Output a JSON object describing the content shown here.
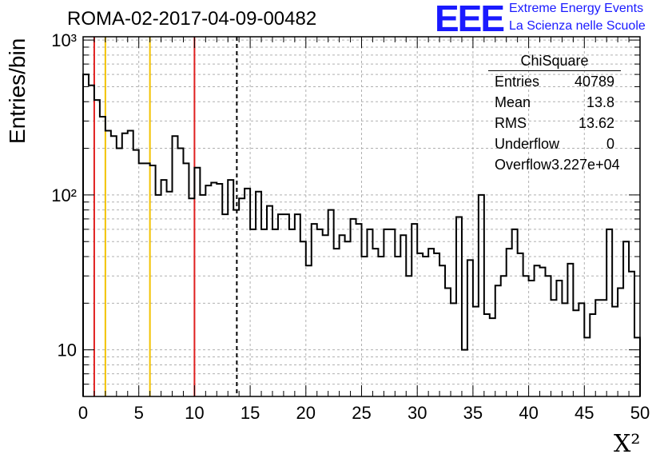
{
  "header": {
    "title": "ROMA-02-2017-04-09-00482",
    "logo_text": "EEE",
    "logo_line1": "Extreme Energy Events",
    "logo_line2": "La Scienza nelle Scuole"
  },
  "stats_box": {
    "title": "ChiSquare",
    "rows": [
      {
        "label": "Entries",
        "value": "40789"
      },
      {
        "label": "Mean",
        "value": "13.8"
      },
      {
        "label": "RMS",
        "value": "13.62"
      },
      {
        "label": "Underflow",
        "value": "0"
      },
      {
        "label": "Overflow",
        "value": "3.227e+04"
      }
    ]
  },
  "colors": {
    "histogram": "#000000",
    "red_line": "#e02020",
    "yellow_line": "#f2c200",
    "grid": "#b0b0b0",
    "logo": "#1a1aff"
  },
  "chart_data": {
    "type": "bar",
    "style": "step-histogram",
    "xlabel": "X²",
    "ylabel": "Entries/bin",
    "xlim": [
      0,
      50
    ],
    "ylim": [
      5,
      1050
    ],
    "log_y": true,
    "grid": true,
    "bin_width": 0.5,
    "x_ticks": [
      0,
      5,
      10,
      15,
      20,
      25,
      30,
      35,
      40,
      45,
      50
    ],
    "x_tick_labels": [
      "0",
      "5",
      "10",
      "15",
      "20",
      "25",
      "30",
      "35",
      "40",
      "45",
      "50"
    ],
    "y_tick_labels": [
      "10",
      "10²",
      "10³"
    ],
    "values": [
      600,
      510,
      410,
      320,
      260,
      240,
      200,
      250,
      260,
      195,
      160,
      160,
      155,
      100,
      125,
      105,
      240,
      200,
      160,
      95,
      150,
      100,
      115,
      120,
      118,
      75,
      125,
      80,
      95,
      110,
      60,
      105,
      60,
      85,
      60,
      75,
      75,
      60,
      75,
      50,
      35,
      65,
      60,
      55,
      80,
      45,
      55,
      50,
      70,
      65,
      40,
      60,
      45,
      40,
      60,
      60,
      40,
      55,
      30,
      65,
      42,
      40,
      45,
      42,
      35,
      25,
      20,
      72,
      10,
      38,
      19,
      100,
      17,
      16,
      26,
      30,
      45,
      60,
      42,
      30,
      28,
      35,
      34,
      30,
      21,
      28,
      20,
      36,
      18,
      20,
      12,
      17,
      21,
      21,
      60,
      19,
      25,
      50,
      32,
      12
    ],
    "vertical_lines": [
      {
        "x": 1,
        "color": "#e02020",
        "style": "solid"
      },
      {
        "x": 2,
        "color": "#f2c200",
        "style": "solid"
      },
      {
        "x": 6,
        "color": "#f2c200",
        "style": "solid"
      },
      {
        "x": 10,
        "color": "#e02020",
        "style": "solid"
      },
      {
        "x": 13.8,
        "color": "#000000",
        "style": "dashed"
      }
    ]
  }
}
